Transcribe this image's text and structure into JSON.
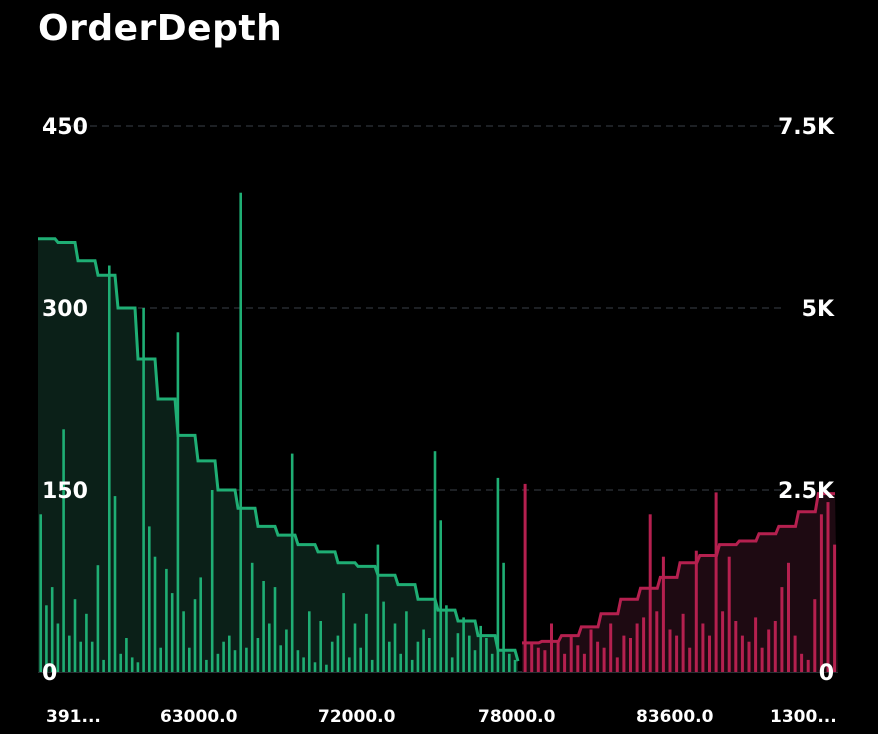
{
  "title": "OrderDepth",
  "chart_data": {
    "type": "bar",
    "title": "OrderDepth",
    "xlabel": "",
    "ylabel": "",
    "left_axis": {
      "ticks": [
        "0",
        "150",
        "300",
        "450"
      ],
      "ylim": [
        0,
        450
      ]
    },
    "right_axis": {
      "ticks": [
        "0",
        "2.5K",
        "5K",
        "7.5K"
      ],
      "ylim": [
        0,
        7500
      ]
    },
    "x_tick_labels": [
      "391...",
      "63000.0",
      "72000.0",
      "78000.0",
      "83600.0",
      "1300..."
    ],
    "grid": true,
    "colors": {
      "bid": "#1fae74",
      "ask": "#b5204f",
      "bid_fill": "#0b2018",
      "ask_fill": "#1e0a12"
    },
    "bids": {
      "name": "",
      "bar_values": [
        130,
        55,
        70,
        40,
        200,
        30,
        60,
        25,
        48,
        25,
        88,
        10,
        335,
        145,
        15,
        28,
        12,
        8,
        300,
        120,
        95,
        20,
        85,
        65,
        280,
        50,
        20,
        60,
        78,
        10,
        150,
        15,
        25,
        30,
        18,
        395,
        20,
        90,
        28,
        75,
        40,
        70,
        22,
        35,
        180,
        18,
        12,
        50,
        8,
        42,
        6,
        25,
        30,
        65,
        12,
        40,
        20,
        48,
        10,
        105,
        58,
        25,
        40,
        15,
        50,
        10,
        25,
        35,
        28,
        182,
        125,
        55,
        12,
        32,
        45,
        30,
        18,
        38,
        28,
        15,
        160,
        90,
        15,
        10
      ],
      "cumulative_levels": [
        5950,
        5900,
        5650,
        5450,
        5000,
        4300,
        3750,
        3250,
        2900,
        2500,
        2250,
        2000,
        1880,
        1750,
        1650,
        1500,
        1450,
        1330,
        1200,
        1000,
        850,
        700,
        500,
        300
      ]
    },
    "asks": {
      "name": "",
      "bar_values": [
        155,
        25,
        20,
        18,
        40,
        25,
        15,
        30,
        22,
        15,
        35,
        25,
        20,
        40,
        12,
        30,
        28,
        40,
        45,
        130,
        50,
        95,
        35,
        30,
        48,
        20,
        100,
        40,
        30,
        148,
        50,
        95,
        42,
        30,
        25,
        45,
        20,
        35,
        42,
        70,
        90,
        30,
        15,
        10,
        60,
        130,
        140,
        105
      ],
      "cumulative_levels": [
        400,
        420,
        500,
        620,
        800,
        1000,
        1150,
        1300,
        1500,
        1600,
        1750,
        1800,
        1900,
        2000,
        2200,
        2450
      ]
    }
  }
}
